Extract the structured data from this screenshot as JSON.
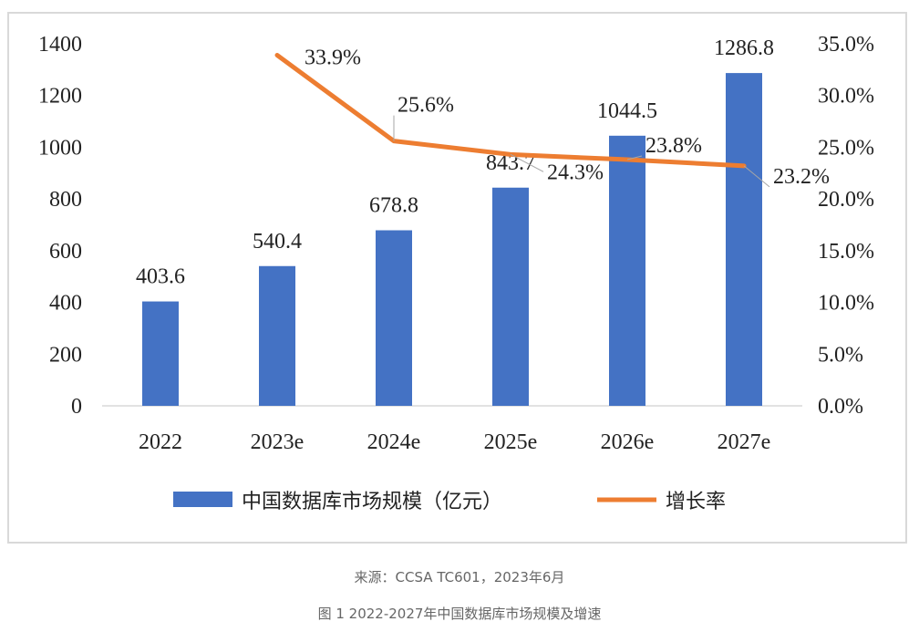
{
  "chart_data": {
    "type": "bar+line",
    "categories": [
      "2022",
      "2023e",
      "2024e",
      "2025e",
      "2026e",
      "2027e"
    ],
    "series": [
      {
        "name": "中国数据库市场规模（亿元）",
        "type": "bar",
        "axis": "left",
        "color": "#4472c4",
        "values": [
          403.6,
          540.4,
          678.8,
          843.7,
          1044.5,
          1286.8
        ],
        "labels": [
          "403.6",
          "540.4",
          "678.8",
          "843.7",
          "1044.5",
          "1286.8"
        ]
      },
      {
        "name": "增长率",
        "type": "line",
        "axis": "right",
        "color": "#ed7d31",
        "values": [
          null,
          33.9,
          25.6,
          24.3,
          23.8,
          23.2
        ],
        "labels": [
          "",
          "33.9%",
          "25.6%",
          "24.3%",
          "23.8%",
          "23.2%"
        ]
      }
    ],
    "y_left": {
      "range": [
        0,
        1400
      ],
      "ticks": [
        "0",
        "200",
        "400",
        "600",
        "800",
        "1000",
        "1200",
        "1400"
      ]
    },
    "y_right": {
      "range": [
        0,
        35
      ],
      "ticks": [
        "0.0%",
        "5.0%",
        "10.0%",
        "15.0%",
        "20.0%",
        "25.0%",
        "30.0%",
        "35.0%"
      ]
    },
    "grid": false,
    "legend": "bottom"
  },
  "caption": {
    "source": "来源：CCSA TC601，2023年6月",
    "title": "图 1 2022-2027年中国数据库市场规模及增速"
  }
}
